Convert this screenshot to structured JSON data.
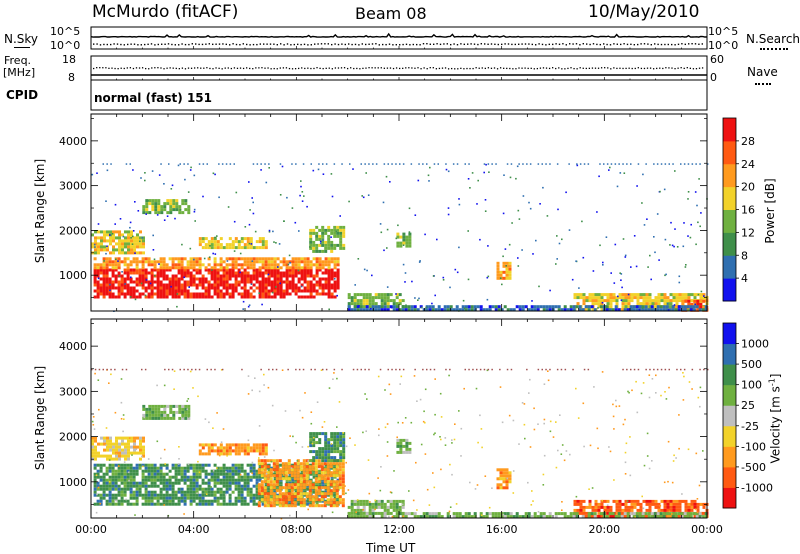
{
  "header": {
    "station": "McMurdo (fitACF)",
    "beam": "Beam 08",
    "date": "10/May/2010"
  },
  "top_panels": {
    "nsky_label": "N.Sky",
    "nsky_ticks": [
      "10^5",
      "10^0"
    ],
    "nsearch_label": "N.Search",
    "nsearch_ticks": [
      "10^5",
      "10^0"
    ],
    "freq_label": "Freq.",
    "freq_unit": "[MHz]",
    "freq_ticks": [
      "18",
      "8"
    ],
    "nave_label": "Nave",
    "nave_ticks": [
      "60",
      "0"
    ],
    "cpid_label": "CPID",
    "cpid_value": "normal (fast) 151"
  },
  "colors": {
    "power_scale": [
      "#1111ee",
      "#2f6fb0",
      "#3f8f4a",
      "#6fb040",
      "#f2d22a",
      "#ff9a1e",
      "#ff5a12",
      "#ee1111"
    ],
    "velocity_scale": [
      "#ee1111",
      "#ff5a12",
      "#ff9a1e",
      "#f2d22a",
      "#bfbfbf",
      "#6fb040",
      "#3f8f4a",
      "#2f6fb0",
      "#1111ee"
    ]
  },
  "chart_data": [
    {
      "type": "heatmap",
      "name": "power-panel",
      "ylabel": "Slant Range [km]",
      "y_ticks": [
        1000,
        2000,
        3000,
        4000
      ],
      "ylim": [
        200,
        4600
      ],
      "colorbar_label": "Power [dB]",
      "colorbar_ticks": [
        "28",
        "24",
        "20",
        "16",
        "12",
        "8",
        "4"
      ],
      "regions": [
        {
          "t0": 0.1,
          "t1": 9.6,
          "r0": 480,
          "r1": 1150,
          "level": 7
        },
        {
          "t0": 0.1,
          "t1": 9.6,
          "r0": 1150,
          "r1": 1400,
          "level": 5
        },
        {
          "t0": 0.0,
          "t1": 2.0,
          "r0": 1500,
          "r1": 2000,
          "level": 4
        },
        {
          "t0": 8.5,
          "t1": 9.9,
          "r0": 1500,
          "r1": 2100,
          "level": 3
        },
        {
          "t0": 2.0,
          "t1": 3.8,
          "r0": 2400,
          "r1": 2700,
          "level": 3
        },
        {
          "t0": 4.2,
          "t1": 6.8,
          "r0": 1600,
          "r1": 1850,
          "level": 4
        },
        {
          "t0": 10.0,
          "t1": 12.2,
          "r0": 300,
          "r1": 600,
          "level": 3
        },
        {
          "t0": 11.9,
          "t1": 12.4,
          "r0": 1650,
          "r1": 1950,
          "level": 3
        },
        {
          "t0": 15.8,
          "t1": 16.3,
          "r0": 900,
          "r1": 1300,
          "level": 5
        },
        {
          "t0": 18.8,
          "t1": 24.0,
          "r0": 230,
          "r1": 600,
          "level": 4
        },
        {
          "t0": 23.0,
          "t1": 24.0,
          "r0": 230,
          "r1": 450,
          "level": 6
        },
        {
          "t0": 10.0,
          "t1": 24.0,
          "r0": 220,
          "r1": 330,
          "level": 1
        }
      ]
    },
    {
      "type": "heatmap",
      "name": "velocity-panel",
      "ylabel": "Slant Range [km]",
      "y_ticks": [
        1000,
        2000,
        3000,
        4000
      ],
      "ylim": [
        200,
        4600
      ],
      "colorbar_label": "Velocity [m s^-1]",
      "colorbar_ticks": [
        "1000",
        "500",
        "100",
        "25",
        "-25",
        "-100",
        "-500",
        "-1000"
      ],
      "x_ticks": [
        "00:00",
        "04:00",
        "08:00",
        "12:00",
        "16:00",
        "20:00",
        "00:00"
      ],
      "xlabel": "Time UT",
      "regions": [
        {
          "t0": 0.1,
          "t1": 9.6,
          "r0": 480,
          "r1": 1400,
          "level": 6
        },
        {
          "t0": 6.5,
          "t1": 9.8,
          "r0": 480,
          "r1": 1500,
          "level": 2
        },
        {
          "t0": 0.0,
          "t1": 2.0,
          "r0": 1500,
          "r1": 2000,
          "level": 3
        },
        {
          "t0": 8.5,
          "t1": 9.9,
          "r0": 1500,
          "r1": 2100,
          "level": 6
        },
        {
          "t0": 2.0,
          "t1": 3.8,
          "r0": 2400,
          "r1": 2700,
          "level": 5
        },
        {
          "t0": 4.2,
          "t1": 6.8,
          "r0": 1600,
          "r1": 1850,
          "level": 2
        },
        {
          "t0": 10.0,
          "t1": 12.2,
          "r0": 300,
          "r1": 600,
          "level": 5
        },
        {
          "t0": 11.9,
          "t1": 12.4,
          "r0": 1650,
          "r1": 1950,
          "level": 5
        },
        {
          "t0": 15.8,
          "t1": 16.3,
          "r0": 900,
          "r1": 1300,
          "level": 2
        },
        {
          "t0": 18.8,
          "t1": 24.0,
          "r0": 230,
          "r1": 600,
          "level": 1
        },
        {
          "t0": 10.0,
          "t1": 24.0,
          "r0": 220,
          "r1": 330,
          "level": 5
        }
      ]
    }
  ]
}
